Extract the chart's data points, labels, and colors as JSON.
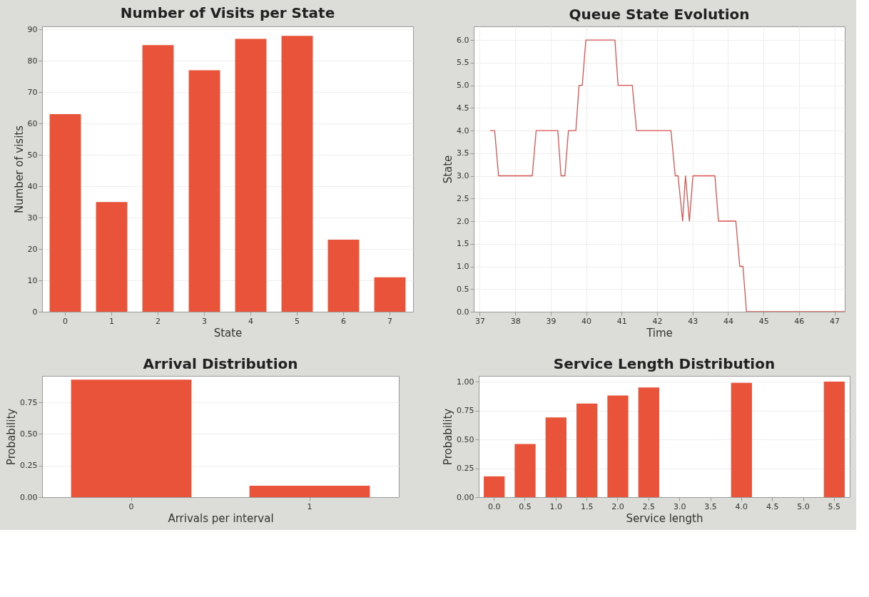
{
  "chart_data": [
    {
      "type": "bar",
      "title": "Number of Visits per State",
      "xlabel": "State",
      "ylabel": "Number of visits",
      "categories": [
        "0",
        "1",
        "2",
        "3",
        "4",
        "5",
        "6",
        "7"
      ],
      "values": [
        63,
        35,
        85,
        77,
        87,
        88,
        23,
        11
      ],
      "color": "#e8533a",
      "ylim": [
        0,
        91
      ],
      "yticks": [
        0,
        10,
        20,
        30,
        40,
        50,
        60,
        70,
        80,
        90
      ],
      "grid": "y"
    },
    {
      "type": "line",
      "title": "Queue State Evolution",
      "xlabel": "Time",
      "ylabel": "State",
      "x": [
        37.29,
        37.42,
        37.53,
        38.48,
        38.59,
        39.2,
        39.29,
        39.4,
        39.5,
        39.71,
        39.8,
        39.89,
        39.99,
        40.81,
        40.9,
        41.3,
        41.42,
        42.39,
        42.51,
        42.59,
        42.72,
        42.8,
        42.91,
        43.01,
        43.63,
        43.73,
        44.22,
        44.33,
        44.42,
        44.52,
        47.29
      ],
      "values": [
        4,
        4,
        3,
        3,
        4,
        4,
        3,
        3,
        4,
        4,
        5,
        5,
        6,
        6,
        5,
        5,
        4,
        4,
        3,
        3,
        2,
        3,
        2,
        3,
        3,
        2,
        2,
        1,
        1,
        0,
        0
      ],
      "color": "#d9534f",
      "xlim": [
        36.83,
        47.29
      ],
      "xticks": [
        37,
        38,
        39,
        40,
        41,
        42,
        43,
        44,
        45,
        46,
        47
      ],
      "ylim": [
        0,
        6.3
      ],
      "yticks": [
        {
          "value": 0,
          "label": "0.0"
        },
        {
          "value": 0.5,
          "label": "0.5"
        },
        {
          "value": 1,
          "label": "1.0"
        },
        {
          "value": 1.5,
          "label": "1.5"
        },
        {
          "value": 2,
          "label": "2.0"
        },
        {
          "value": 2.5,
          "label": "2.5"
        },
        {
          "value": 3,
          "label": "3.0"
        },
        {
          "value": 3.5,
          "label": "3.5"
        },
        {
          "value": 4,
          "label": "4.0"
        },
        {
          "value": 4.5,
          "label": "4.5"
        },
        {
          "value": 5,
          "label": "5.0"
        },
        {
          "value": 5.5,
          "label": "5.5"
        },
        {
          "value": 6,
          "label": "6.0"
        }
      ],
      "grid": true,
      "marker": "none",
      "line_style": "solid"
    },
    {
      "type": "bar",
      "title": "Arrival Distribution",
      "xlabel": "Arrivals per interval",
      "ylabel": "Probability",
      "categories": [
        "0",
        "1"
      ],
      "values": [
        0.93,
        0.09
      ],
      "color": "#e8533a",
      "ylim": [
        0,
        0.96
      ],
      "yticks": [
        {
          "value": 0,
          "label": "0.00"
        },
        0.25,
        {
          "value": 0.5,
          "label": "0.50"
        },
        0.75
      ],
      "grid": "y"
    },
    {
      "type": "bar",
      "title": "Service Length Distribution",
      "xlabel": "Service length",
      "ylabel": "Probability",
      "categories": [
        "0.0",
        "0.5",
        "1.0",
        "1.5",
        "2.0",
        "2.5",
        "3.0",
        "3.5",
        "4.0",
        "4.5",
        "5.0",
        "5.5"
      ],
      "values": [
        0.18,
        0.46,
        0.69,
        0.81,
        0.88,
        0.95,
        null,
        null,
        0.99,
        null,
        null,
        1.0
      ],
      "color": "#e8533a",
      "ylim": [
        0,
        1.05
      ],
      "yticks": [
        {
          "value": 0,
          "label": "0.00"
        },
        0.25,
        {
          "value": 0.5,
          "label": "0.50"
        },
        0.75,
        {
          "value": 1,
          "label": "1.00"
        }
      ],
      "grid": "y"
    }
  ]
}
